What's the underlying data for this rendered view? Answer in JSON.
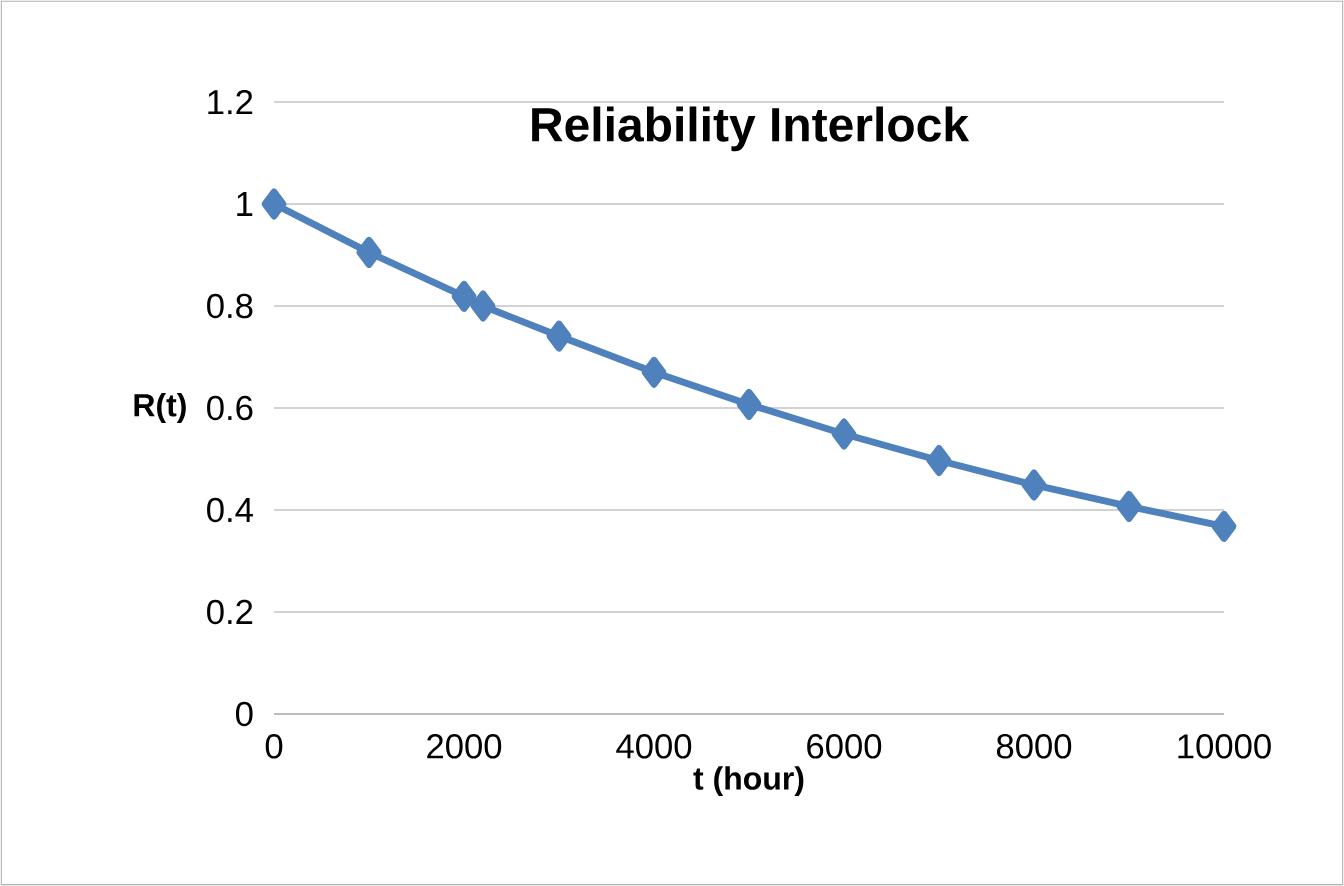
{
  "chart_data": {
    "type": "line",
    "title": "Reliability Interlock",
    "xlabel": "t (hour)",
    "ylabel": "R(t)",
    "x": [
      0,
      1000,
      2000,
      2200,
      3000,
      4000,
      5000,
      6000,
      7000,
      8000,
      9000,
      10000
    ],
    "series": [
      {
        "color": "#4f81bd",
        "values": [
          1,
          0.905,
          0.819,
          0.8,
          0.741,
          0.67,
          0.607,
          0.549,
          0.497,
          0.449,
          0.407,
          0.368
        ]
      }
    ],
    "xlim": [
      0,
      10000
    ],
    "xticks": [
      0,
      2000,
      4000,
      6000,
      8000,
      10000
    ],
    "ylim": [
      0,
      1.2
    ],
    "yticks": [
      0,
      0.2,
      0.4,
      0.6,
      0.8,
      1,
      1.2
    ],
    "grid": "y",
    "marker": "diamond",
    "line_style": "solid"
  }
}
